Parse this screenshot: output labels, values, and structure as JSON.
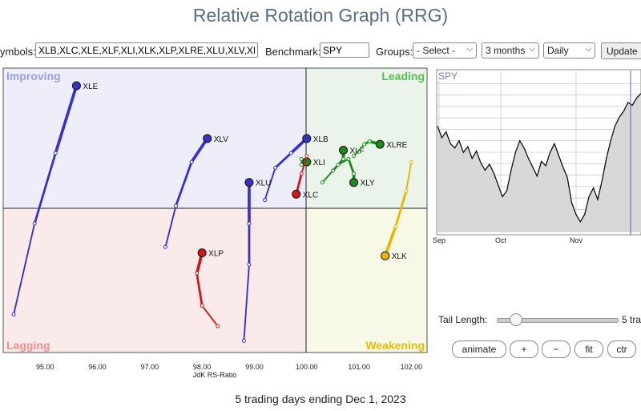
{
  "title": "Relative Rotation Graph (RRG)",
  "toolbar": {
    "symbols_label": "ymbols:",
    "symbols_value": "XLB,XLC,XLE,XLF,XLI,XLK,XLP,XLRE,XLU,XLV,XLY",
    "benchmark_label": "Benchmark:",
    "benchmark_value": "SPY",
    "groups_label": "Groups:",
    "groups_value": "- Select -",
    "period_value": "3 months",
    "frequency_value": "Daily",
    "update_label": "Update"
  },
  "quadrants": {
    "improving": "Improving",
    "leading": "Leading",
    "lagging": "Lagging",
    "weakening": "Weakening"
  },
  "colors": {
    "improving": "#3b30c8",
    "leading": "#1d8a1d",
    "lagging": "#d41616",
    "weakening": "#e6b800"
  },
  "axis": {
    "xlabel": "JdK RS-Ratio",
    "x_ticks": [
      "95.00",
      "96.00",
      "97.00",
      "98.00",
      "99.00",
      "100.00",
      "101.00",
      "102.00"
    ]
  },
  "chart_data": {
    "type": "scatter",
    "xlabel": "JdK RS-Ratio",
    "xlim": [
      94.2,
      102.3
    ],
    "ylim": [
      94.2,
      103.9
    ],
    "center": [
      100,
      100
    ],
    "series": [
      {
        "name": "XLE",
        "quadrant": "improving",
        "points": [
          [
            94.4,
            95.5
          ],
          [
            94.8,
            98.6
          ],
          [
            95.2,
            101.0
          ],
          [
            95.6,
            103.3
          ]
        ]
      },
      {
        "name": "XLV",
        "quadrant": "improving",
        "points": [
          [
            97.3,
            97.8
          ],
          [
            97.5,
            99.2
          ],
          [
            97.8,
            100.7
          ],
          [
            98.1,
            101.5
          ]
        ]
      },
      {
        "name": "XLB",
        "quadrant": "improving",
        "points": [
          [
            99.2,
            99.4
          ],
          [
            99.4,
            100.5
          ],
          [
            99.7,
            101.0
          ],
          [
            100.0,
            101.5
          ]
        ]
      },
      {
        "name": "XLU",
        "quadrant": "improving",
        "points": [
          [
            98.8,
            94.6
          ],
          [
            98.9,
            97.2
          ],
          [
            98.9,
            98.6
          ],
          [
            98.9,
            100.0
          ]
        ]
      },
      {
        "name": "XLI",
        "quadrant": "leading",
        "points": [
          [
            99.9,
            100.6
          ],
          [
            99.9,
            100.8
          ],
          [
            100.0,
            100.7
          ]
        ]
      },
      {
        "name": "XLC",
        "quadrant": "lagging",
        "points": [
          [
            100.0,
            100.9
          ],
          [
            99.9,
            100.3
          ],
          [
            99.8,
            99.6
          ]
        ]
      },
      {
        "name": "XLF",
        "quadrant": "leading",
        "points": [
          [
            100.3,
            100.0
          ],
          [
            100.5,
            100.4
          ],
          [
            100.7,
            100.8
          ],
          [
            100.7,
            101.1
          ]
        ]
      },
      {
        "name": "XLRE",
        "quadrant": "leading",
        "points": [
          [
            100.9,
            100.9
          ],
          [
            101.1,
            101.3
          ],
          [
            101.2,
            101.4
          ],
          [
            101.4,
            101.3
          ]
        ]
      },
      {
        "name": "XLY",
        "quadrant": "leading",
        "points": [
          [
            100.6,
            100.6
          ],
          [
            100.8,
            100.8
          ],
          [
            100.9,
            100.3
          ],
          [
            100.9,
            100.0
          ]
        ]
      },
      {
        "name": "XLK",
        "quadrant": "weakening",
        "points": [
          [
            102.0,
            100.7
          ],
          [
            101.9,
            99.7
          ],
          [
            101.7,
            98.5
          ],
          [
            101.5,
            97.5
          ]
        ]
      },
      {
        "name": "XLP",
        "quadrant": "lagging",
        "points": [
          [
            98.3,
            95.1
          ],
          [
            98.0,
            95.8
          ],
          [
            97.9,
            96.9
          ],
          [
            98.0,
            97.6
          ]
        ]
      }
    ]
  },
  "spy_panel": {
    "label": "SPY",
    "x_ticks": [
      "Sep",
      "Oct",
      "Nov"
    ],
    "series": [
      0.7,
      0.62,
      0.66,
      0.58,
      0.55,
      0.6,
      0.52,
      0.56,
      0.48,
      0.53,
      0.45,
      0.4,
      0.44,
      0.38,
      0.3,
      0.22,
      0.26,
      0.4,
      0.52,
      0.6,
      0.55,
      0.48,
      0.42,
      0.36,
      0.46,
      0.43,
      0.52,
      0.58,
      0.5,
      0.42,
      0.35,
      0.18,
      0.1,
      0.05,
      0.1,
      0.22,
      0.28,
      0.2,
      0.33,
      0.48,
      0.6,
      0.7,
      0.76,
      0.8,
      0.86,
      0.84,
      0.89,
      0.92
    ]
  },
  "controls": {
    "tail_length_label": "Tail Length:",
    "tail_length_value": "5 tra",
    "animate_label": "animate",
    "plus_label": "+",
    "minus_label": "−",
    "fit_label": "fit",
    "ctr_label": "ctr"
  },
  "footer": "5 trading days ending Dec 1, 2023"
}
